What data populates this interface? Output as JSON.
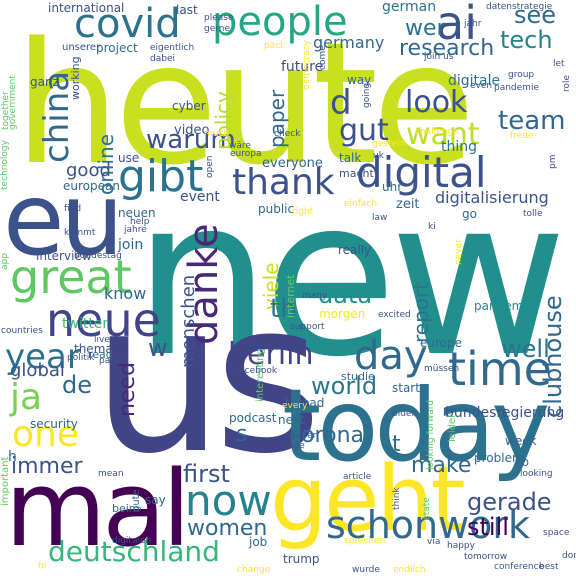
{
  "words": [
    {
      "text": "new",
      "color": "#21908d"
    },
    {
      "text": "heute",
      "color": "#c8e020"
    },
    {
      "text": "us",
      "color": "#414487"
    },
    {
      "text": "eu",
      "color": "#3b528b"
    },
    {
      "text": "today",
      "color": "#2c728e"
    },
    {
      "text": "mal",
      "color": "#440154"
    },
    {
      "text": "geht",
      "color": "#fde725"
    },
    {
      "text": "people",
      "color": "#22a884"
    },
    {
      "text": "digital",
      "color": "#3b528b"
    },
    {
      "text": "covid",
      "color": "#2c728e"
    },
    {
      "text": "ai",
      "color": "#3b528b"
    },
    {
      "text": "great",
      "color": "#5ec962"
    },
    {
      "text": "neue",
      "color": "#414487"
    },
    {
      "text": "schonwork",
      "color": "#31688e"
    },
    {
      "text": "thank",
      "color": "#3b528b"
    },
    {
      "text": "gibt",
      "color": "#2c728e"
    },
    {
      "text": "china",
      "color": "#31688e"
    },
    {
      "text": "danke",
      "color": "#482878"
    },
    {
      "text": "time",
      "color": "#31688e"
    },
    {
      "text": "day",
      "color": "#31688e"
    },
    {
      "text": "year",
      "color": "#2c728e"
    },
    {
      "text": "now",
      "color": "#26828e"
    },
    {
      "text": "one",
      "color": "#fde725"
    },
    {
      "text": "deutschland",
      "color": "#35b779"
    },
    {
      "text": "berlin",
      "color": "#414487"
    },
    {
      "text": "ja",
      "color": "#7ad151"
    },
    {
      "text": "look",
      "color": "#3b528b"
    },
    {
      "text": "want",
      "color": "#bddf26"
    },
    {
      "text": "gut",
      "color": "#3b528b"
    },
    {
      "text": "wer",
      "color": "#2c728e"
    },
    {
      "text": "tech",
      "color": "#26828e"
    },
    {
      "text": "see",
      "color": "#31688e"
    },
    {
      "text": "research",
      "color": "#31688e"
    },
    {
      "text": "team",
      "color": "#31688e"
    },
    {
      "text": "warum",
      "color": "#3b528b"
    },
    {
      "text": "data",
      "color": "#21918c"
    },
    {
      "text": "world",
      "color": "#2a788e"
    },
    {
      "text": "corona",
      "color": "#31688e"
    },
    {
      "text": "first",
      "color": "#3b528b"
    },
    {
      "text": "gerade",
      "color": "#3b528b"
    },
    {
      "text": "still",
      "color": "#440154"
    },
    {
      "text": "women",
      "color": "#31688e"
    },
    {
      "text": "immer",
      "color": "#3b528b"
    },
    {
      "text": "make",
      "color": "#31688e"
    },
    {
      "text": "well",
      "color": "#2c728e"
    },
    {
      "text": "need",
      "color": "#482878"
    },
    {
      "text": "online",
      "color": "#2c728e"
    },
    {
      "text": "viele",
      "color": "#c8e020"
    },
    {
      "text": "policy",
      "color": "#b5de2b"
    },
    {
      "text": "paper",
      "color": "#31688e"
    },
    {
      "text": "clubhouse",
      "color": "#31688e"
    },
    {
      "text": "report",
      "color": "#2c728e"
    },
    {
      "text": "good",
      "color": "#3b528b"
    },
    {
      "text": "germany",
      "color": "#31688e"
    },
    {
      "text": "d",
      "color": "#3b528b"
    },
    {
      "text": "th",
      "color": "#2c728e"
    },
    {
      "text": "know",
      "color": "#31688e"
    },
    {
      "text": "de",
      "color": "#31688e"
    },
    {
      "text": "w",
      "color": "#3b528b"
    },
    {
      "text": "global",
      "color": "#3b528b"
    },
    {
      "text": "menschen",
      "color": "#3b528b"
    },
    {
      "text": "twitter",
      "color": "#35b779"
    },
    {
      "text": "digitalisierung",
      "color": "#3b528b"
    },
    {
      "text": "bundesregierung",
      "color": "#3b528b"
    },
    {
      "text": "event",
      "color": "#3b528b"
    },
    {
      "text": "future",
      "color": "#3b528b"
    },
    {
      "text": "international",
      "color": "#3b528b"
    },
    {
      "text": "project",
      "color": "#31688e"
    },
    {
      "text": "german",
      "color": "#2c728e"
    },
    {
      "text": "digitale",
      "color": "#2c728e"
    },
    {
      "text": "video",
      "color": "#3b528b"
    },
    {
      "text": "everyone",
      "color": "#31688e"
    },
    {
      "text": "talk",
      "color": "#31688e"
    },
    {
      "text": "thing",
      "color": "#2c728e"
    },
    {
      "text": "european",
      "color": "#31688e"
    },
    {
      "text": "neuen",
      "color": "#31688e"
    },
    {
      "text": "join",
      "color": "#31688e"
    },
    {
      "text": "interview",
      "color": "#3b528b"
    },
    {
      "text": "thema",
      "color": "#3b528b"
    },
    {
      "text": "podcast",
      "color": "#31688e"
    },
    {
      "text": "security",
      "color": "#31688e"
    },
    {
      "text": "last",
      "color": "#3b528b"
    },
    {
      "text": "ganz",
      "color": "#3b528b"
    },
    {
      "text": "working",
      "color": "#3b528b"
    },
    {
      "text": "use",
      "color": "#3b528b"
    },
    {
      "text": "cyber",
      "color": "#3b528b"
    },
    {
      "text": "zeit",
      "color": "#31688e"
    },
    {
      "text": "public",
      "color": "#31688e"
    },
    {
      "text": "way",
      "color": "#31688e"
    },
    {
      "text": "uhr",
      "color": "#31688e"
    },
    {
      "text": "go",
      "color": "#31688e"
    },
    {
      "text": "really",
      "color": "#3b528b"
    },
    {
      "text": "internet",
      "color": "#5ec962"
    },
    {
      "text": "morgen",
      "color": "#fde725"
    },
    {
      "text": "europe",
      "color": "#31688e"
    },
    {
      "text": "pandemic",
      "color": "#21918c"
    },
    {
      "text": "next",
      "color": "#31688e"
    },
    {
      "text": "say",
      "color": "#31688e"
    },
    {
      "text": "interesting",
      "color": "#5ec962"
    },
    {
      "text": "problem",
      "color": "#31688e"
    },
    {
      "text": "week",
      "color": "#31688e"
    },
    {
      "text": "job",
      "color": "#31688e"
    },
    {
      "text": "trump",
      "color": "#3b528b"
    },
    {
      "text": "start",
      "color": "#31688e"
    },
    {
      "text": "read",
      "color": "#31688e"
    },
    {
      "text": "studie",
      "color": "#31688e"
    },
    {
      "text": "beim",
      "color": "#31688e"
    },
    {
      "text": "important",
      "color": "#5ec962"
    },
    {
      "text": "gute",
      "color": "#31688e"
    },
    {
      "text": "ab",
      "color": "#31688e"
    },
    {
      "text": "leider",
      "color": "#5ec962"
    },
    {
      "text": "thread",
      "color": "#31688e"
    },
    {
      "text": "s",
      "color": "#31688e"
    },
    {
      "text": "t",
      "color": "#31688e"
    },
    {
      "text": "h",
      "color": "#31688e"
    },
    {
      "text": "datenstrategie",
      "color": "#3b528b"
    },
    {
      "text": "jahr",
      "color": "#3b528b"
    },
    {
      "text": "unserer",
      "color": "#3b528b"
    },
    {
      "text": "eigentlich",
      "color": "#3b528b"
    },
    {
      "text": "macht",
      "color": "#3b528b"
    },
    {
      "text": "government",
      "color": "#5ec962"
    },
    {
      "text": "together",
      "color": "#5ec962"
    },
    {
      "text": "technology",
      "color": "#5ec962"
    },
    {
      "text": "please",
      "color": "#3b528b"
    },
    {
      "text": "gerne",
      "color": "#3b528b"
    },
    {
      "text": "join us",
      "color": "#3b528b"
    },
    {
      "text": "group",
      "color": "#3b528b"
    },
    {
      "text": "pandemie",
      "color": "#3b528b"
    },
    {
      "text": "challenge",
      "color": "#fde725"
    },
    {
      "text": "check",
      "color": "#3b528b"
    },
    {
      "text": "wäre",
      "color": "#3b528b"
    },
    {
      "text": "europa",
      "color": "#3b528b"
    },
    {
      "text": "tolle",
      "color": "#3b528b"
    },
    {
      "text": "excited",
      "color": "#3b528b"
    },
    {
      "text": "support",
      "color": "#3b528b"
    },
    {
      "text": "biden",
      "color": "#3b528b"
    },
    {
      "text": "müssen",
      "color": "#3b528b"
    },
    {
      "text": "looking forward",
      "color": "#5ec962"
    },
    {
      "text": "looking",
      "color": "#3b528b"
    },
    {
      "text": "article",
      "color": "#3b528b"
    },
    {
      "text": "frage",
      "color": "#3b528b"
    },
    {
      "text": "super",
      "color": "#3b528b"
    },
    {
      "text": "bundestag",
      "color": "#3b528b"
    },
    {
      "text": "countries",
      "color": "#3b528b"
    },
    {
      "text": "politik",
      "color": "#3b528b"
    },
    {
      "text": "live",
      "color": "#3b528b"
    },
    {
      "text": "panel",
      "color": "#3b528b"
    },
    {
      "text": "facebook",
      "color": "#3b528b"
    },
    {
      "text": "many",
      "color": "#3b528b"
    },
    {
      "text": "tomorrow",
      "color": "#3b528b"
    },
    {
      "text": "happy",
      "color": "#3b528b"
    },
    {
      "text": "sprechen",
      "color": "#fde725"
    },
    {
      "text": "digitalen",
      "color": "#3b528b"
    },
    {
      "text": "conference",
      "color": "#3b528b"
    },
    {
      "text": "best",
      "color": "#3b528b"
    },
    {
      "text": "space",
      "color": "#3b528b"
    },
    {
      "text": "endlich",
      "color": "#fde725"
    },
    {
      "text": "change",
      "color": "#fde725"
    },
    {
      "text": "wurde",
      "color": "#3b528b"
    },
    {
      "text": "via",
      "color": "#3b528b"
    },
    {
      "text": "state",
      "color": "#5ec962"
    },
    {
      "text": "think",
      "color": "#3b528b"
    },
    {
      "text": "mean",
      "color": "#3b528b"
    },
    {
      "text": "dabei",
      "color": "#3b528b"
    },
    {
      "text": "pact",
      "color": "#fde725"
    },
    {
      "text": "even",
      "color": "#3b528b"
    },
    {
      "text": "much",
      "color": "#fde725"
    },
    {
      "text": "gestern",
      "color": "#fde725"
    },
    {
      "text": "democracy",
      "color": "#fde725"
    },
    {
      "text": "going",
      "color": "#3b528b"
    },
    {
      "text": "come",
      "color": "#3b528b"
    },
    {
      "text": "freue",
      "color": "#fde725"
    },
    {
      "text": "role",
      "color": "#3b528b"
    },
    {
      "text": "ki",
      "color": "#3b528b"
    },
    {
      "text": "law",
      "color": "#3b528b"
    },
    {
      "text": "open",
      "color": "#3b528b"
    },
    {
      "text": "help",
      "color": "#3b528b"
    },
    {
      "text": "jahre",
      "color": "#3b528b"
    },
    {
      "text": "kommt",
      "color": "#3b528b"
    },
    {
      "text": "app",
      "color": "#5ec962"
    },
    {
      "text": "find",
      "color": "#3b528b"
    },
    {
      "text": "einfach",
      "color": "#fde725"
    },
    {
      "text": "right",
      "color": "#fde725"
    },
    {
      "text": "pm",
      "color": "#3b528b"
    },
    {
      "text": "let",
      "color": "#3b528b"
    },
    {
      "text": "uk",
      "color": "#3b528b"
    },
    {
      "text": "never",
      "color": "#fde725"
    },
    {
      "text": "every",
      "color": "#fde725"
    },
    {
      "text": "don",
      "color": "#3b528b"
    },
    {
      "text": "hi",
      "color": "#fde725"
    }
  ]
}
